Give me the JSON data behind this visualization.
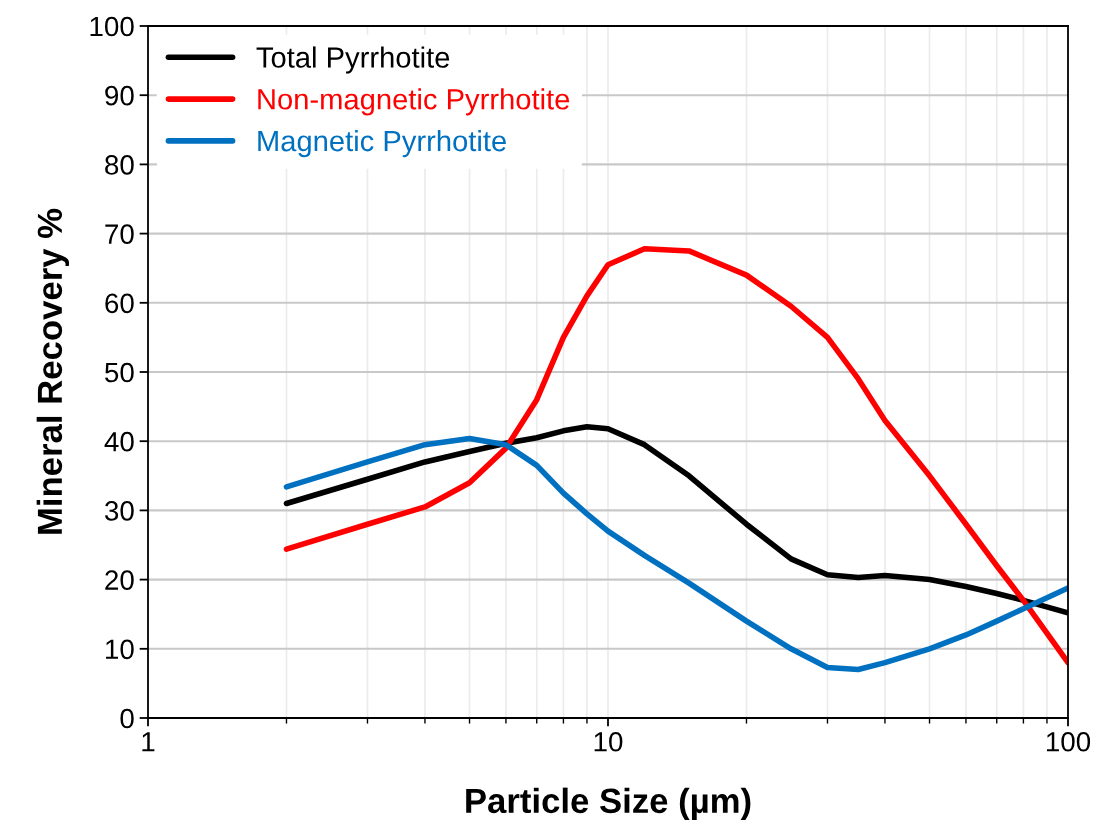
{
  "chart_data": {
    "type": "line",
    "xlabel": "Particle Size (µm)",
    "ylabel": "Mineral Recovery %",
    "log": "x",
    "xlim": [
      1,
      100
    ],
    "xticks": [
      1,
      10,
      100
    ],
    "ylim": [
      0,
      100
    ],
    "yticks": [
      0,
      10,
      20,
      30,
      40,
      50,
      60,
      70,
      80,
      90,
      100
    ],
    "grid": true,
    "legend": "top left",
    "marker": "none",
    "line_style": "solid",
    "x": [
      2,
      3,
      4,
      5,
      6,
      7,
      8,
      9,
      10,
      12,
      15,
      20,
      25,
      30,
      35,
      40,
      50,
      60,
      70,
      80,
      100
    ],
    "series": [
      {
        "name": "Total Pyrrhotite",
        "color": "#000000",
        "values": [
          31,
          34.5,
          37,
          38.5,
          39.7,
          40.5,
          41.5,
          42.1,
          41.8,
          39.5,
          35,
          28,
          23,
          20.7,
          20.3,
          20.6,
          20,
          19,
          18,
          17,
          15.2
        ]
      },
      {
        "name": "Non-magnetic Pyrrhotite",
        "color": "#ff0000",
        "values": [
          24.4,
          28,
          30.5,
          34,
          39,
          46,
          55,
          61,
          65.5,
          67.8,
          67.5,
          64,
          59.5,
          55,
          49,
          43,
          35,
          28,
          22,
          17,
          8
        ]
      },
      {
        "name": "Magnetic Pyrrhotite",
        "color": "#0070c0",
        "values": [
          33.4,
          37,
          39.5,
          40.4,
          39.5,
          36.5,
          32.5,
          29.5,
          27,
          23.5,
          19.5,
          14,
          10,
          7.3,
          7,
          8,
          10,
          12,
          14,
          15.8,
          18.8
        ]
      }
    ]
  }
}
